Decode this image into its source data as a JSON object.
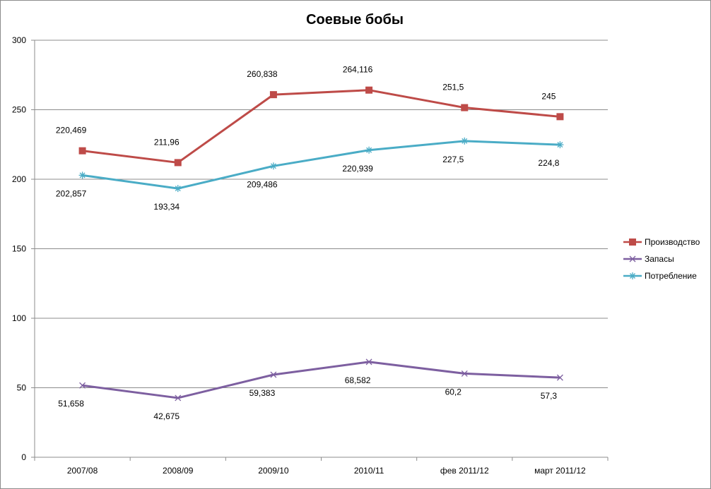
{
  "chart_data": {
    "type": "line",
    "title": "Соевые бобы",
    "categories": [
      "2007/08",
      "2008/09",
      "2009/10",
      "2010/11",
      "фев 2011/12",
      "март 2011/12"
    ],
    "ylim": [
      0,
      300
    ],
    "yticks": [
      0,
      50,
      100,
      150,
      200,
      250,
      300
    ],
    "grid": true,
    "legend_position": "right",
    "series": [
      {
        "name": "Производство",
        "color": "#be4b48",
        "marker": "square",
        "values": [
          220.469,
          211.96,
          260.838,
          264.116,
          251.5,
          245
        ],
        "labels": [
          "220,469",
          "211,96",
          "260,838",
          "264,116",
          "251,5",
          "245"
        ],
        "label_side": "above"
      },
      {
        "name": "Запасы",
        "color": "#7d5fa0",
        "marker": "x",
        "values": [
          51.658,
          42.675,
          59.383,
          68.582,
          60.2,
          57.3
        ],
        "labels": [
          "51,658",
          "42,675",
          "59,383",
          "68,582",
          "60,2",
          "57,3"
        ],
        "label_side": "below"
      },
      {
        "name": "Потребление",
        "color": "#4aacc6",
        "marker": "star",
        "values": [
          202.857,
          193.34,
          209.486,
          220.939,
          227.5,
          224.8
        ],
        "labels": [
          "202,857",
          "193,34",
          "209,486",
          "220,939",
          "227,5",
          "224,8"
        ],
        "label_side": "below"
      }
    ]
  }
}
